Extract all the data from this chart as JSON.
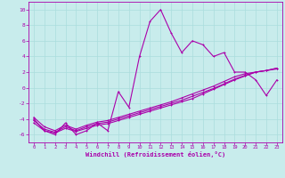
{
  "xlabel": "Windchill (Refroidissement éolien,°C)",
  "ylabel": "",
  "background_color": "#c8ecec",
  "line_color": "#aa00aa",
  "xlim": [
    -0.5,
    23.5
  ],
  "ylim": [
    -7,
    11
  ],
  "xticks": [
    0,
    1,
    2,
    3,
    4,
    5,
    6,
    7,
    8,
    9,
    10,
    11,
    12,
    13,
    14,
    15,
    16,
    17,
    18,
    19,
    20,
    21,
    22,
    23
  ],
  "yticks": [
    -6,
    -4,
    -2,
    0,
    2,
    4,
    6,
    8,
    10
  ],
  "grid_color": "#aadddd",
  "series1_x": [
    0,
    1,
    2,
    3,
    4,
    5,
    6,
    7,
    8,
    9,
    10,
    11,
    12,
    13,
    14,
    15,
    16,
    17,
    18,
    19,
    20,
    21,
    22,
    23
  ],
  "series1_y": [
    -4.0,
    -5.5,
    -6.0,
    -4.5,
    -6.0,
    -5.5,
    -4.5,
    -5.5,
    -0.5,
    -2.5,
    4.0,
    8.5,
    10.0,
    7.0,
    4.5,
    6.0,
    5.5,
    4.0,
    4.5,
    2.0,
    2.0,
    1.0,
    -1.0,
    1.0
  ],
  "series2_x": [
    0,
    1,
    2,
    3,
    4,
    5,
    6,
    7,
    8,
    9,
    10,
    11,
    12,
    13,
    14,
    15,
    16,
    17,
    18,
    19,
    20,
    21,
    22,
    23
  ],
  "series2_y": [
    -4.5,
    -5.5,
    -5.8,
    -5.2,
    -5.6,
    -5.2,
    -4.8,
    -4.6,
    -4.2,
    -3.8,
    -3.4,
    -3.0,
    -2.6,
    -2.2,
    -1.8,
    -1.4,
    -0.8,
    -0.2,
    0.4,
    1.0,
    1.5,
    2.0,
    2.2,
    2.5
  ],
  "series3_x": [
    0,
    1,
    2,
    3,
    4,
    5,
    6,
    7,
    8,
    9,
    10,
    11,
    12,
    13,
    14,
    15,
    16,
    17,
    18,
    19,
    20,
    21,
    22,
    23
  ],
  "series3_y": [
    -4.2,
    -5.3,
    -5.7,
    -5.0,
    -5.5,
    -5.0,
    -4.6,
    -4.4,
    -4.0,
    -3.6,
    -3.2,
    -2.8,
    -2.4,
    -2.0,
    -1.6,
    -1.1,
    -0.6,
    -0.1,
    0.5,
    1.1,
    1.6,
    2.0,
    2.2,
    2.5
  ],
  "series4_x": [
    0,
    1,
    2,
    3,
    4,
    5,
    6,
    7,
    8,
    9,
    10,
    11,
    12,
    13,
    14,
    15,
    16,
    17,
    18,
    19,
    20,
    21,
    22,
    23
  ],
  "series4_y": [
    -3.8,
    -5.0,
    -5.5,
    -4.8,
    -5.3,
    -4.8,
    -4.4,
    -4.2,
    -3.8,
    -3.4,
    -3.0,
    -2.6,
    -2.2,
    -1.8,
    -1.3,
    -0.8,
    -0.3,
    0.2,
    0.8,
    1.4,
    1.8,
    2.0,
    2.2,
    2.4
  ]
}
